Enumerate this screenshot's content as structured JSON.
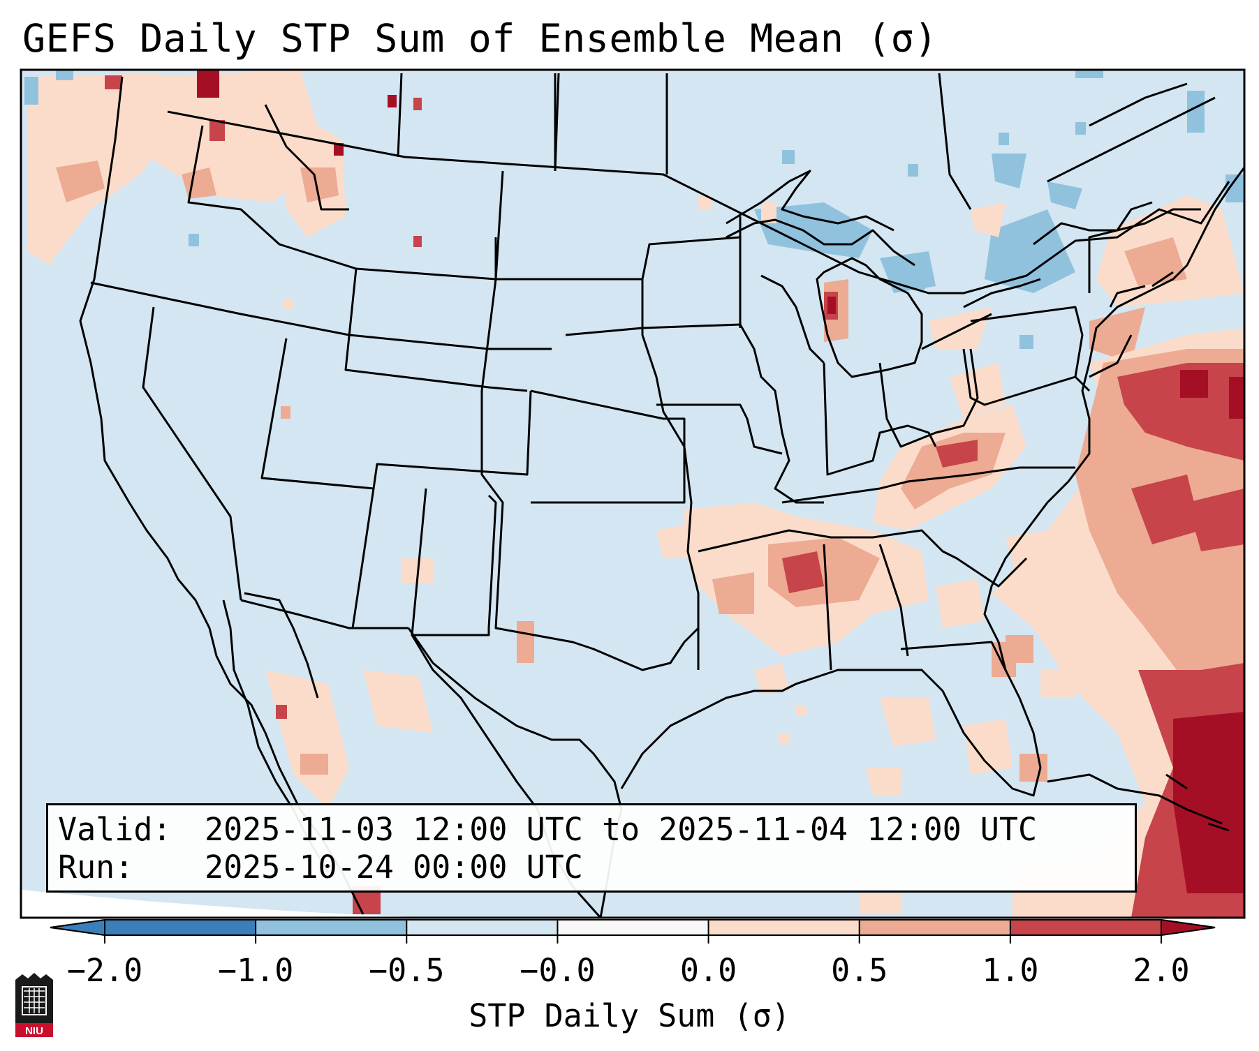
{
  "title": "GEFS Daily STP Sum of Ensemble Mean (σ)",
  "info": {
    "valid_label": "Valid:",
    "valid_value": "2025-11-03 12:00 UTC to 2025-11-04 12:00 UTC",
    "run_label": "Run:",
    "run_value": "2025-10-24 00:00 UTC"
  },
  "colorbar": {
    "label": "STP Daily Sum (σ)",
    "ticks": [
      "−2.0",
      "−1.0",
      "−0.5",
      "−0.0",
      "0.0",
      "0.5",
      "1.0",
      "2.0"
    ],
    "colors": [
      "#3a7fb9",
      "#90c2de",
      "#d3e6f1",
      "#f8f8f8",
      "#fbdccb",
      "#ecab92",
      "#c6444a",
      "#a50f26"
    ]
  },
  "map": {
    "background_color": "#d3e6f1",
    "features": [
      "CONUS state boundaries",
      "Canada provinces",
      "Mexico",
      "Great Lakes",
      "Caribbean"
    ]
  },
  "logo": {
    "text": "NIU"
  }
}
